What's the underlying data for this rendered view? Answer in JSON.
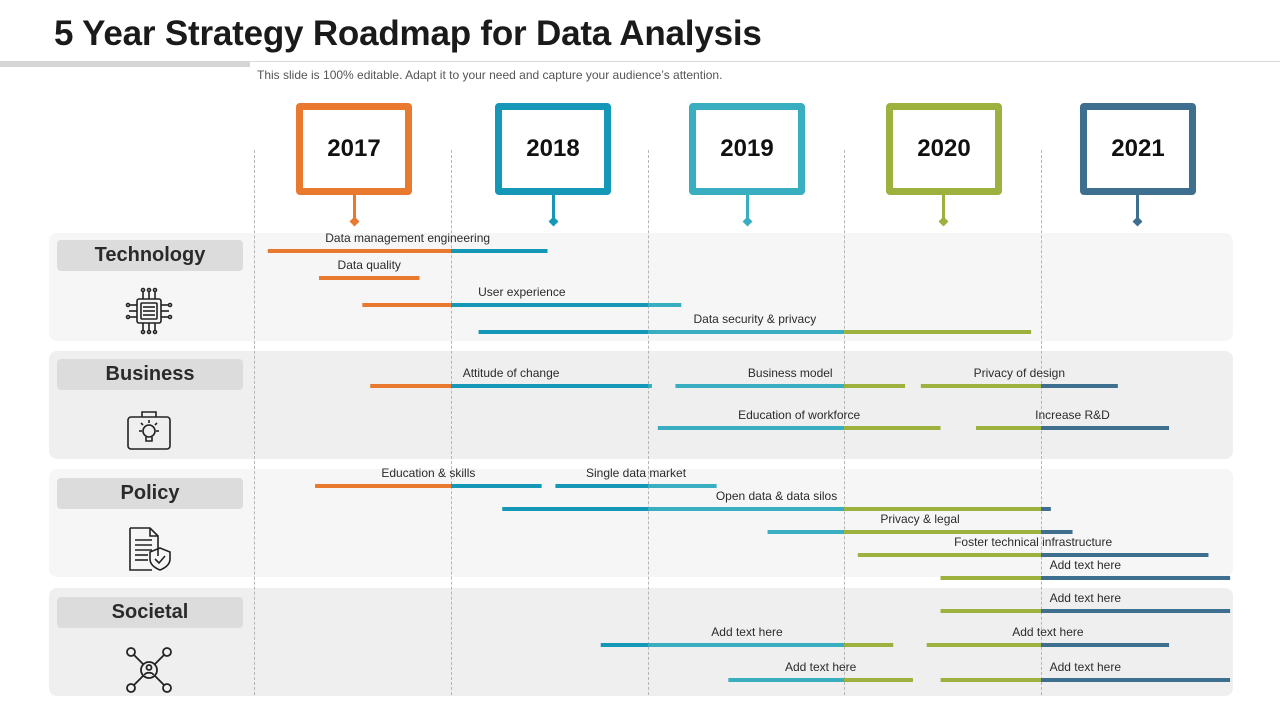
{
  "title": "5 Year Strategy Roadmap for Data Analysis",
  "subtitle": "This slide is 100% editable. Adapt it to your need and capture your audience’s attention.",
  "colors": {
    "2017": "#e8792f",
    "2018": "#1597b8",
    "2019": "#3aaec1",
    "2020": "#9db13f",
    "2021": "#3f6f8f"
  },
  "years": [
    {
      "label": "2017",
      "key": "2017"
    },
    {
      "label": "2018",
      "key": "2018"
    },
    {
      "label": "2019",
      "key": "2019"
    },
    {
      "label": "2020",
      "key": "2020"
    },
    {
      "label": "2021",
      "key": "2021"
    }
  ],
  "categories": [
    {
      "label": "Technology",
      "icon": "chip-icon"
    },
    {
      "label": "Business",
      "icon": "briefcase-lightbulb-icon"
    },
    {
      "label": "Policy",
      "icon": "document-shield-icon"
    },
    {
      "label": "Societal",
      "icon": "network-user-icon"
    }
  ],
  "timeline": {
    "start_year": 2017,
    "end_year": 2022
  },
  "tasks": [
    {
      "label": "Data management engineering",
      "category": "Technology",
      "start": 2017.07,
      "end": 2018.49
    },
    {
      "label": "Data quality",
      "category": "Technology",
      "start": 2017.33,
      "end": 2017.84
    },
    {
      "label": "User experience",
      "category": "Technology",
      "start": 2017.55,
      "end": 2019.17
    },
    {
      "label": "Data security & privacy",
      "category": "Technology",
      "start": 2018.14,
      "end": 2020.95
    },
    {
      "label": "Attitude of change",
      "category": "Business",
      "start": 2017.59,
      "end": 2019.02
    },
    {
      "label": "Business model",
      "category": "Business",
      "start": 2019.14,
      "end": 2020.31
    },
    {
      "label": "Privacy of design",
      "category": "Business",
      "start": 2020.39,
      "end": 2021.39
    },
    {
      "label": "Education of workforce",
      "category": "Business",
      "start": 2019.05,
      "end": 2020.49
    },
    {
      "label": "Increase R&D",
      "category": "Business",
      "start": 2020.67,
      "end": 2021.65
    },
    {
      "label": "Education & skills",
      "category": "Policy",
      "start": 2017.31,
      "end": 2018.46
    },
    {
      "label": "Single data market",
      "category": "Policy",
      "start": 2018.53,
      "end": 2019.35
    },
    {
      "label": "Open data & data silos",
      "category": "Policy",
      "start": 2018.26,
      "end": 2021.05
    },
    {
      "label": "Privacy & legal",
      "category": "Policy",
      "start": 2019.61,
      "end": 2021.16
    },
    {
      "label": "Foster technical infrastructure",
      "category": "Policy",
      "start": 2020.07,
      "end": 2021.85
    },
    {
      "label": "Add text here",
      "category": "Policy",
      "start": 2020.49,
      "end": 2021.96
    },
    {
      "label": "Add text here",
      "category": "Societal",
      "start": 2020.49,
      "end": 2021.96
    },
    {
      "label": "Add text here",
      "category": "Societal",
      "start": 2018.76,
      "end": 2020.25
    },
    {
      "label": "Add text here",
      "category": "Societal",
      "start": 2020.42,
      "end": 2021.65
    },
    {
      "label": "Add text here",
      "category": "Societal",
      "start": 2019.41,
      "end": 2020.35
    },
    {
      "label": "Add text here",
      "category": "Societal",
      "start": 2020.49,
      "end": 2021.96
    }
  ]
}
